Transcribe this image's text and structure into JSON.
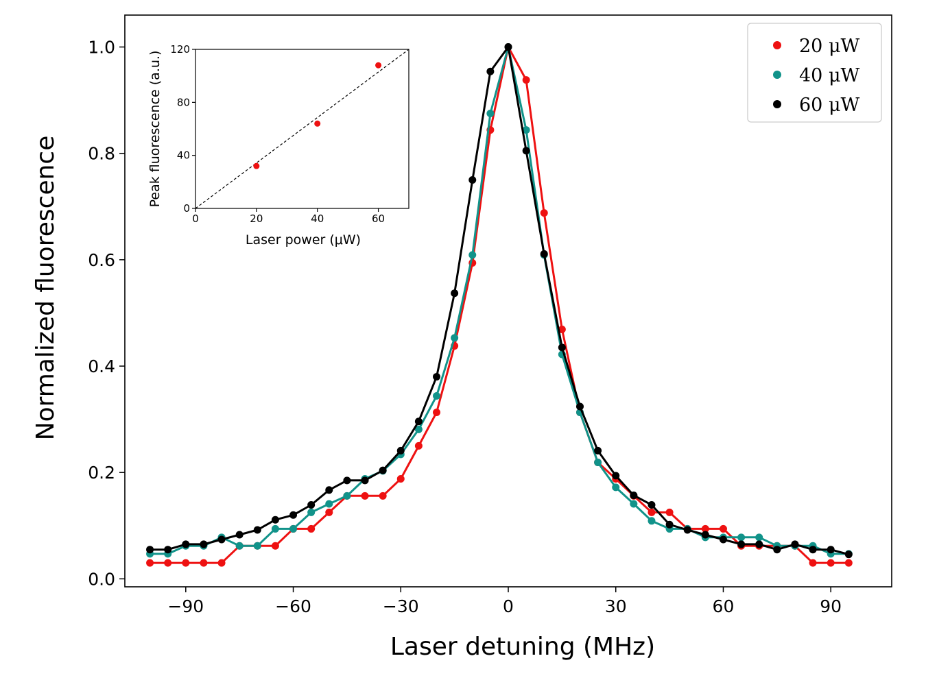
{
  "chart_data": [
    {
      "type": "line",
      "name": "main",
      "xlabel": "Laser detuning (MHz)",
      "ylabel": "Normalized fluorescence",
      "xlim": [
        -107,
        107
      ],
      "ylim": [
        -0.015,
        1.06
      ],
      "xticks": [
        -90,
        -60,
        -30,
        0,
        30,
        60,
        90
      ],
      "yticks": [
        0.0,
        0.2,
        0.4,
        0.6,
        0.8,
        1.0
      ],
      "xtick_labels": [
        "−90",
        "−60",
        "−30",
        "0",
        "30",
        "60",
        "90"
      ],
      "ytick_labels": [
        "0.0",
        "0.2",
        "0.4",
        "0.6",
        "0.8",
        "1.0"
      ],
      "legend_position": "top-right",
      "x": [
        -100,
        -95,
        -90,
        -85,
        -80,
        -75,
        -70,
        -65,
        -60,
        -55,
        -50,
        -45,
        -40,
        -35,
        -30,
        -25,
        -20,
        -15,
        -10,
        -5,
        0,
        5,
        10,
        15,
        20,
        25,
        30,
        35,
        40,
        45,
        50,
        55,
        60,
        65,
        70,
        75,
        80,
        85,
        90,
        95
      ],
      "series": [
        {
          "name": "20 μW",
          "color": "#ee1111",
          "values": [
            0.03,
            0.03,
            0.03,
            0.03,
            0.03,
            0.062,
            0.062,
            0.062,
            0.094,
            0.094,
            0.125,
            0.156,
            0.156,
            0.156,
            0.188,
            0.25,
            0.313,
            0.438,
            0.594,
            0.844,
            1.0,
            0.938,
            0.688,
            0.469,
            0.313,
            0.219,
            0.188,
            0.156,
            0.125,
            0.125,
            0.094,
            0.094,
            0.094,
            0.062,
            0.062,
            0.062,
            0.062,
            0.03,
            0.03,
            0.03
          ]
        },
        {
          "name": "40 μW",
          "color": "#11938a",
          "values": [
            0.047,
            0.047,
            0.062,
            0.062,
            0.078,
            0.062,
            0.062,
            0.094,
            0.094,
            0.125,
            0.141,
            0.156,
            0.188,
            0.203,
            0.234,
            0.281,
            0.344,
            0.453,
            0.609,
            0.875,
            1.0,
            0.844,
            0.609,
            0.422,
            0.313,
            0.219,
            0.172,
            0.141,
            0.109,
            0.094,
            0.094,
            0.078,
            0.078,
            0.078,
            0.078,
            0.062,
            0.062,
            0.062,
            0.047,
            0.047
          ]
        },
        {
          "name": "60 μW",
          "color": "#000000",
          "values": [
            0.055,
            0.055,
            0.065,
            0.065,
            0.074,
            0.083,
            0.092,
            0.111,
            0.12,
            0.139,
            0.167,
            0.185,
            0.185,
            0.204,
            0.241,
            0.296,
            0.38,
            0.537,
            0.75,
            0.954,
            1.0,
            0.805,
            0.611,
            0.435,
            0.324,
            0.241,
            0.194,
            0.157,
            0.139,
            0.102,
            0.092,
            0.083,
            0.074,
            0.065,
            0.065,
            0.055,
            0.065,
            0.055,
            0.055,
            0.046
          ]
        }
      ]
    },
    {
      "type": "scatter",
      "name": "inset",
      "xlabel": "Laser power (μW)",
      "ylabel": "Peak fluorescence (a.u.)",
      "xlim": [
        0,
        70
      ],
      "ylim": [
        0,
        120
      ],
      "xticks": [
        0,
        20,
        40,
        60
      ],
      "yticks": [
        0,
        40,
        80,
        120
      ],
      "xtick_labels": [
        "0",
        "20",
        "40",
        "60"
      ],
      "ytick_labels": [
        "0",
        "40",
        "80",
        "120"
      ],
      "points": [
        {
          "x": 20,
          "y": 32
        },
        {
          "x": 40,
          "y": 64
        },
        {
          "x": 60,
          "y": 108
        }
      ],
      "point_color": "#ee1111",
      "reference_line": {
        "style": "dashed",
        "from": [
          0,
          0
        ],
        "to": [
          70,
          120
        ]
      }
    }
  ]
}
